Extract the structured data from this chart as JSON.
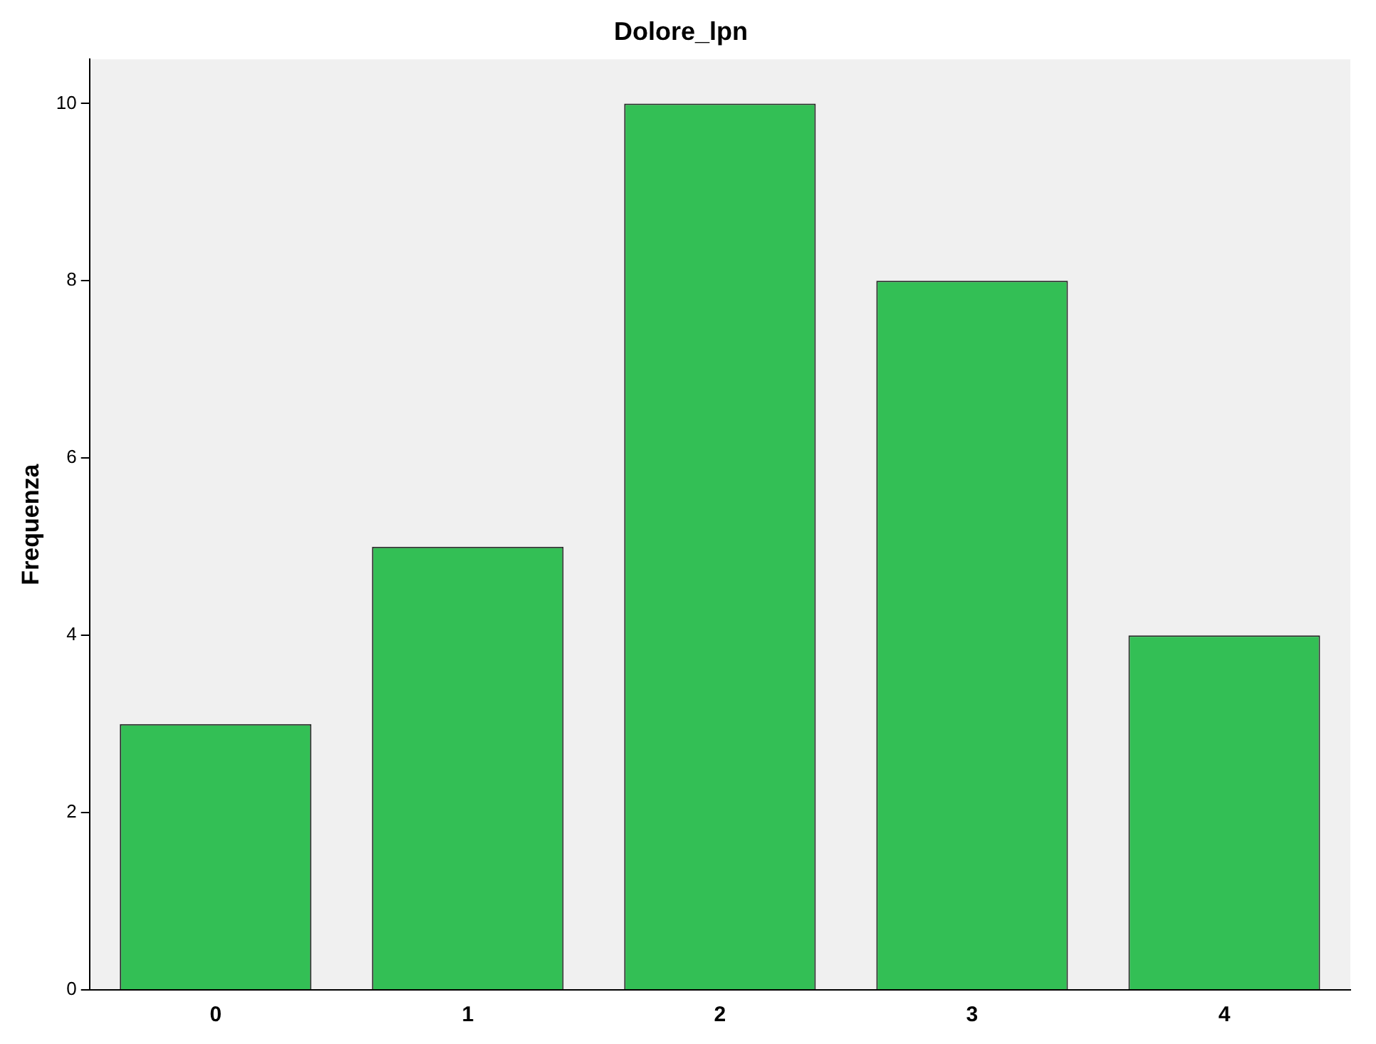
{
  "chart_data": {
    "type": "bar",
    "title": "Dolore_lpn",
    "ylabel": "Frequenza",
    "categories": [
      "0",
      "1",
      "2",
      "3",
      "4"
    ],
    "values": [
      3,
      5,
      10,
      8,
      4
    ],
    "color": "#33bf55",
    "ylim": [
      0,
      10.5
    ],
    "yticks": [
      0,
      2,
      4,
      6,
      8,
      10
    ],
    "grid": false,
    "legend": false
  }
}
